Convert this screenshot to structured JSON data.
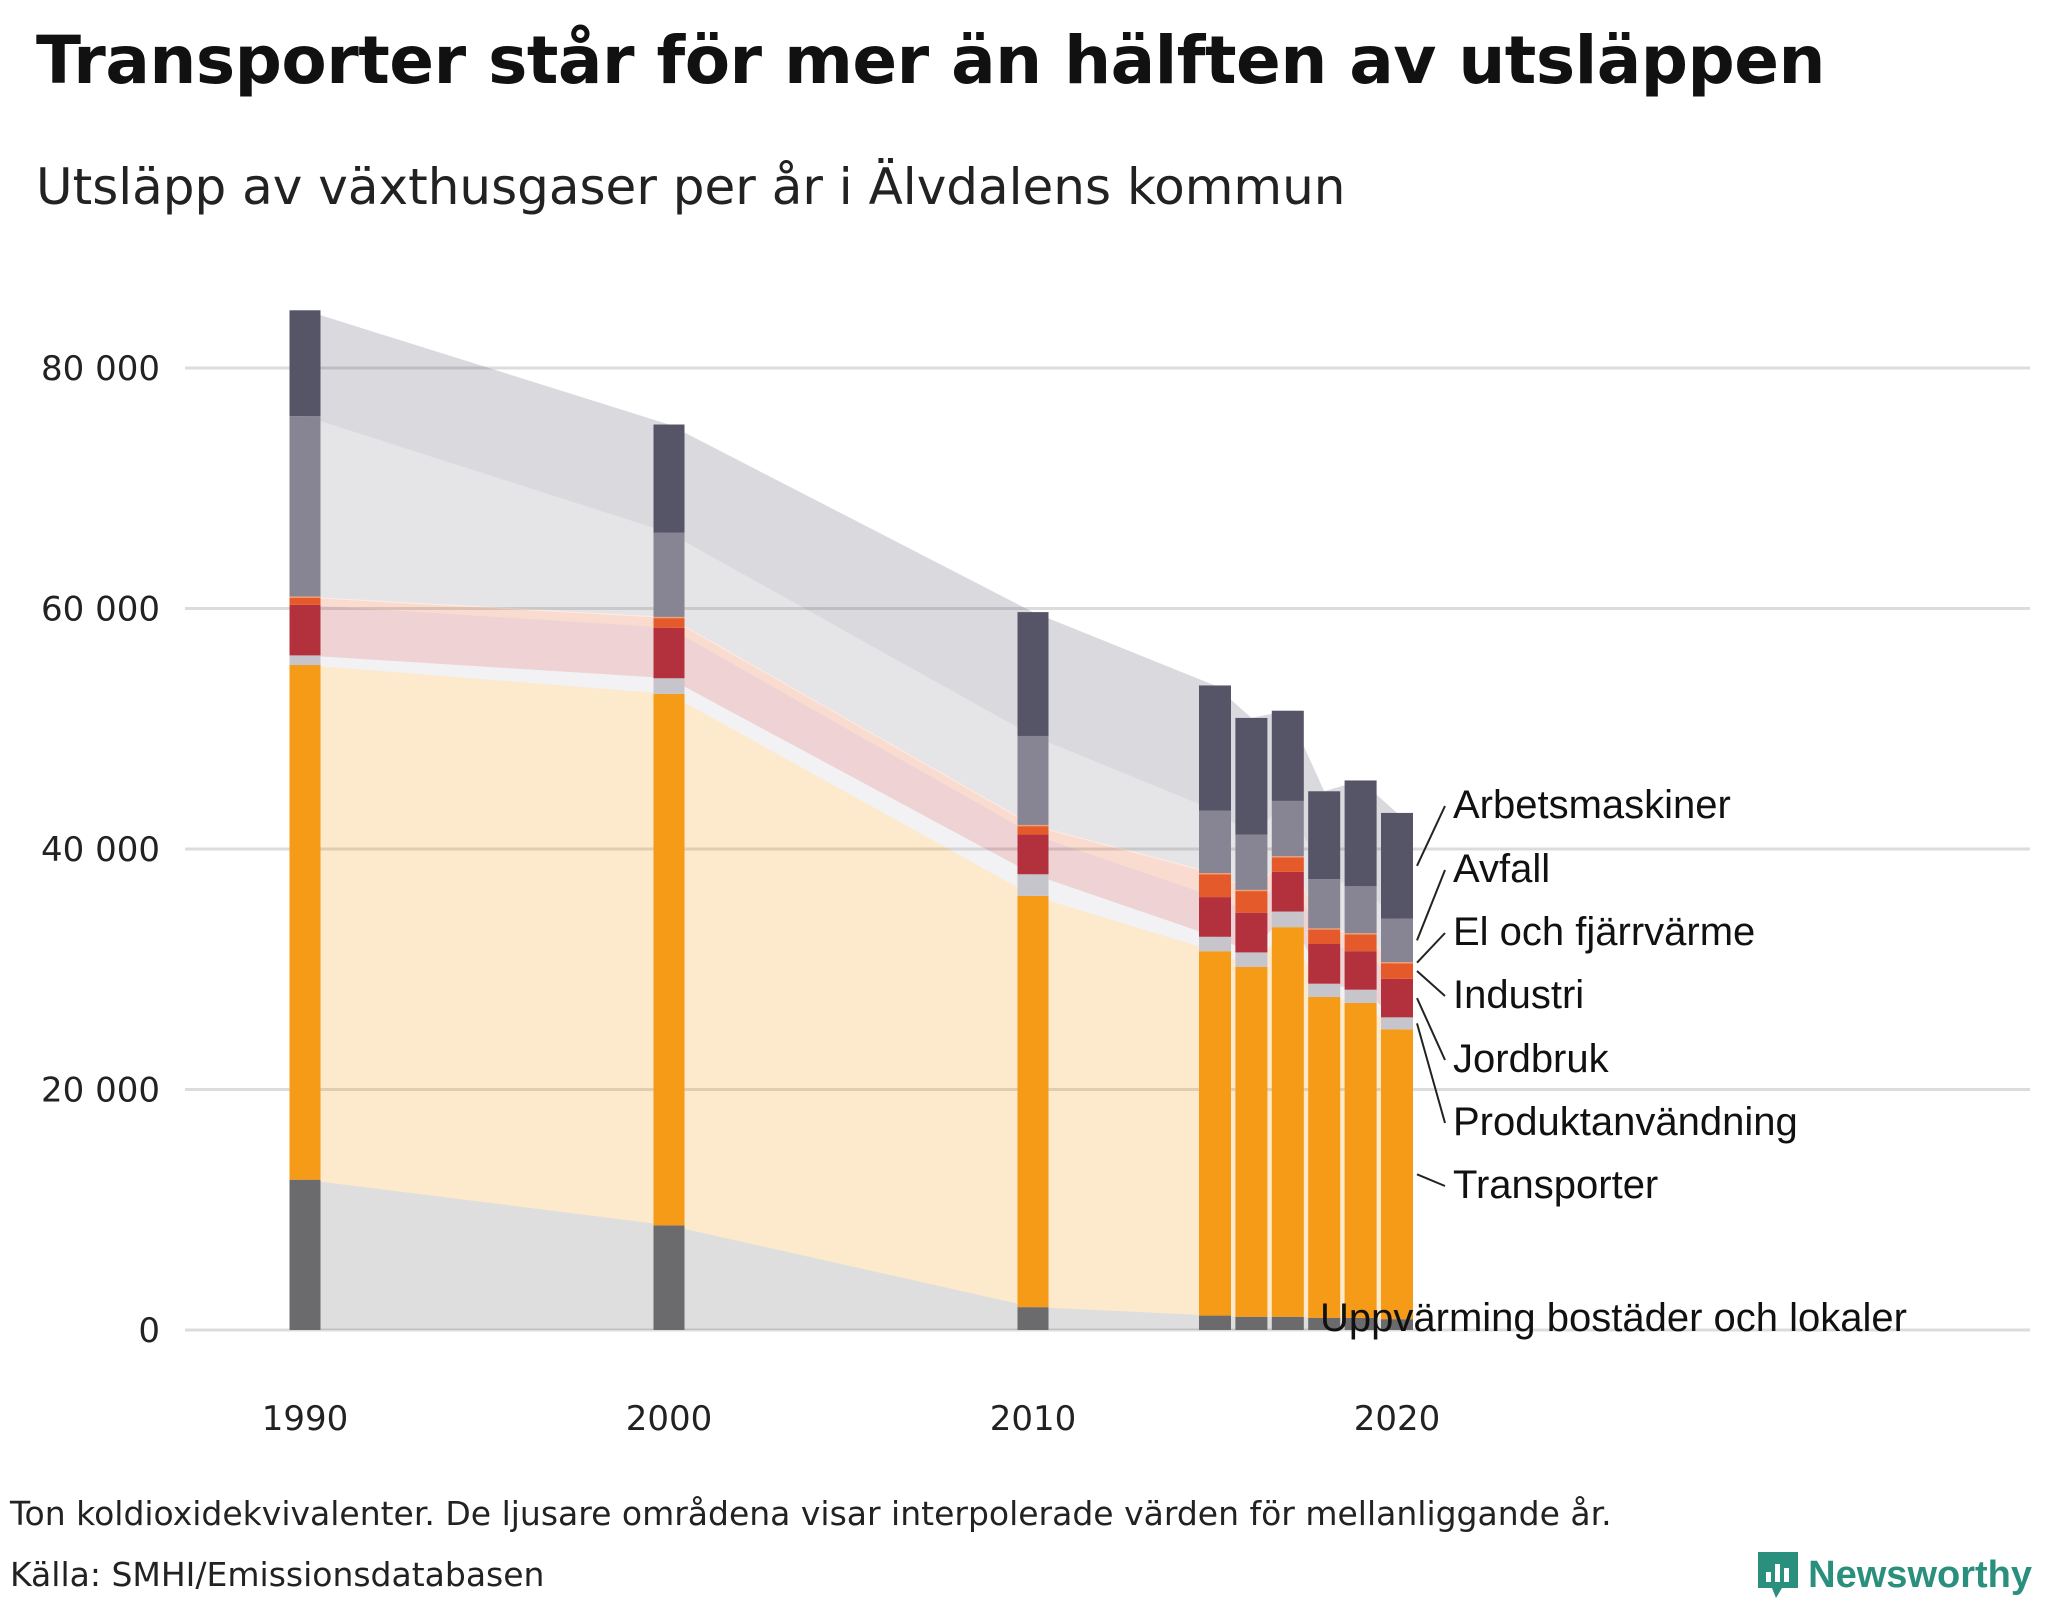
{
  "header": {
    "title": "Transporter står för mer än hälften av utsläppen",
    "subtitle": "Utsläpp av växthusgaser per år i Älvdalens kommun"
  },
  "footer": {
    "note": "Ton koldioxidekvivalenter. De ljusare områdena visar interpolerade värden för mellanliggande år.",
    "source": "Källa: SMHI/Emissionsdatabasen",
    "brand": "Newsworthy"
  },
  "colors": {
    "Uppvärming bostäder och lokaler": "#6b6b6d",
    "Transporter": "#f59b18",
    "Produktanvändning": "#c5c5cb",
    "Jordbruk": "#b3313d",
    "Industri": "#e45a2a",
    "El och fjärrvärme": "#f5a070",
    "Avfall": "#878593",
    "Arbetsmaskiner": "#565467",
    "grid": "#dcdcdc",
    "brand": "#2a8f7c"
  },
  "chart_data": {
    "type": "bar",
    "stacked": true,
    "title": "Utsläpp av växthusgaser per år i Älvdalens kommun",
    "ylabel": "Ton koldioxidekvivalenter",
    "ylim": [
      0,
      85000
    ],
    "yticks": [
      0,
      20000,
      40000,
      60000,
      80000
    ],
    "ytick_labels": [
      "0",
      "20 000",
      "40 000",
      "60 000",
      "80 000"
    ],
    "xticks": [
      1990,
      2000,
      2010,
      2020
    ],
    "xtick_labels": [
      "1990",
      "2000",
      "2010",
      "2020"
    ],
    "categories": [
      1990,
      2000,
      2010,
      2015,
      2016,
      2017,
      2018,
      2019,
      2020
    ],
    "series": [
      {
        "name": "Uppvärming bostäder och lokaler",
        "values": [
          12500,
          8700,
          1900,
          1200,
          1100,
          1100,
          1000,
          1000,
          900
        ]
      },
      {
        "name": "Transporter",
        "values": [
          42800,
          44200,
          34200,
          30300,
          29100,
          32400,
          26700,
          26200,
          24100
        ]
      },
      {
        "name": "Produktanvändning",
        "values": [
          800,
          1300,
          1800,
          1200,
          1200,
          1300,
          1100,
          1100,
          1000
        ]
      },
      {
        "name": "Jordbruk",
        "values": [
          4200,
          4200,
          3300,
          3300,
          3300,
          3300,
          3300,
          3200,
          3200
        ]
      },
      {
        "name": "Industri",
        "values": [
          600,
          800,
          700,
          1900,
          1800,
          1200,
          1200,
          1400,
          1300
        ]
      },
      {
        "name": "El och fjärrvärme",
        "values": [
          100,
          100,
          100,
          100,
          100,
          100,
          100,
          100,
          100
        ]
      },
      {
        "name": "Avfall",
        "values": [
          15000,
          7000,
          7400,
          5200,
          4600,
          4600,
          4100,
          3900,
          3600
        ]
      },
      {
        "name": "Arbetsmaskiner",
        "values": [
          8800,
          9000,
          10300,
          10400,
          9700,
          7500,
          7300,
          8800,
          8800
        ]
      }
    ],
    "label_order": [
      "Arbetsmaskiner",
      "Avfall",
      "El och fjärrvärme",
      "Industri",
      "Jordbruk",
      "Produktanvändning",
      "Transporter",
      "Uppvärming bostäder och lokaler"
    ]
  }
}
